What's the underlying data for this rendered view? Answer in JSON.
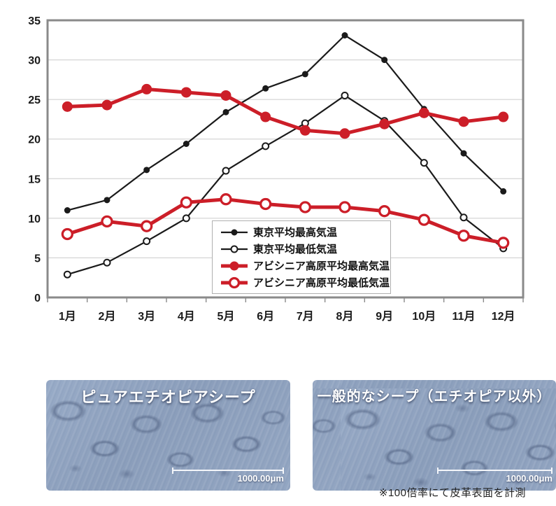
{
  "chart_data": {
    "type": "line",
    "title": "",
    "xlabel": "",
    "ylabel": "",
    "ylim": [
      0,
      35
    ],
    "ytick_step": 5,
    "grid": true,
    "legend_position": "inside-bottom-center",
    "categories": [
      "1月",
      "2月",
      "3月",
      "4月",
      "5月",
      "6月",
      "7月",
      "8月",
      "9月",
      "10月",
      "11月",
      "12月"
    ],
    "yticks": [
      "0",
      "5",
      "10",
      "15",
      "20",
      "25",
      "30",
      "35"
    ],
    "series": [
      {
        "name": "東京平均最高気温",
        "color": "#1a1a1a",
        "marker": "filled",
        "line_width": 2.2,
        "marker_r": 4.5,
        "values": [
          11.0,
          12.3,
          16.1,
          19.4,
          23.4,
          26.4,
          28.2,
          33.1,
          30.0,
          23.8,
          18.2,
          13.4
        ]
      },
      {
        "name": "東京平均最低気温",
        "color": "#1a1a1a",
        "marker": "open",
        "line_width": 2.2,
        "marker_r": 4.5,
        "values": [
          2.9,
          4.4,
          7.1,
          10.0,
          16.0,
          19.1,
          22.0,
          25.5,
          22.3,
          17.0,
          10.1,
          6.2
        ]
      },
      {
        "name": "アビシニア高原平均最高気温",
        "color": "#cc1e28",
        "marker": "filled",
        "line_width": 5,
        "marker_r": 7.5,
        "values": [
          24.1,
          24.3,
          26.3,
          25.9,
          25.5,
          22.8,
          21.1,
          20.7,
          21.9,
          23.3,
          22.2,
          22.8
        ]
      },
      {
        "name": "アビシニア高原平均最低気温",
        "color": "#cc1e28",
        "marker": "open",
        "line_width": 5,
        "marker_r": 7,
        "values": [
          8.0,
          9.6,
          9.0,
          12.0,
          12.4,
          11.8,
          11.4,
          11.4,
          10.9,
          9.8,
          7.8,
          6.9
        ]
      }
    ],
    "colors": {
      "grid": "#cccccc",
      "frame": "#8a8a8a",
      "text": "#1a1a1a"
    }
  },
  "photos": {
    "left": {
      "label": "ピュアエチオピアシープ",
      "scale_label": "1000.00μm"
    },
    "right": {
      "label": "一般的なシープ（エチオピア以外）",
      "scale_label": "1000.00μm"
    },
    "caption": "※100倍率にて皮革表面を計測"
  }
}
